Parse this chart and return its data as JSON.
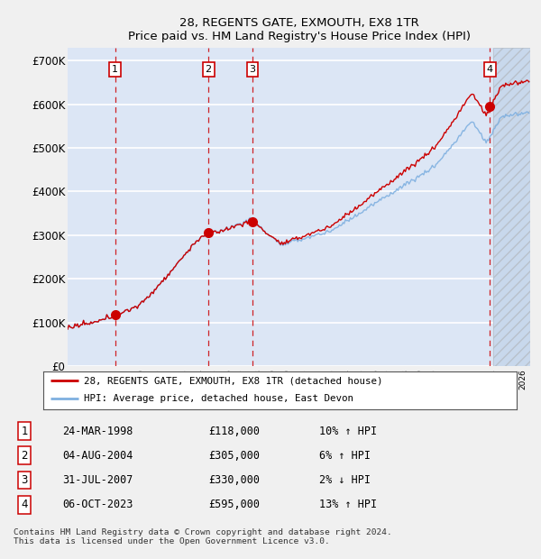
{
  "title": "28, REGENTS GATE, EXMOUTH, EX8 1TR",
  "subtitle": "Price paid vs. HM Land Registry's House Price Index (HPI)",
  "ylim": [
    0,
    730000
  ],
  "yticks": [
    0,
    100000,
    200000,
    300000,
    400000,
    500000,
    600000,
    700000
  ],
  "ytick_labels": [
    "£0",
    "£100K",
    "£200K",
    "£300K",
    "£400K",
    "£500K",
    "£600K",
    "£700K"
  ],
  "background_color": "#dce6f5",
  "grid_color": "#ffffff",
  "sale_year_nums": [
    1998.23,
    2004.59,
    2007.58,
    2023.76
  ],
  "sale_prices": [
    118000,
    305000,
    330000,
    595000
  ],
  "sale_labels": [
    "1",
    "2",
    "3",
    "4"
  ],
  "legend_property": "28, REGENTS GATE, EXMOUTH, EX8 1TR (detached house)",
  "legend_hpi": "HPI: Average price, detached house, East Devon",
  "table_rows": [
    [
      "1",
      "24-MAR-1998",
      "£118,000",
      "10% ↑ HPI"
    ],
    [
      "2",
      "04-AUG-2004",
      "£305,000",
      "6% ↑ HPI"
    ],
    [
      "3",
      "31-JUL-2007",
      "£330,000",
      "2% ↓ HPI"
    ],
    [
      "4",
      "06-OCT-2023",
      "£595,000",
      "13% ↑ HPI"
    ]
  ],
  "footer": "Contains HM Land Registry data © Crown copyright and database right 2024.\nThis data is licensed under the Open Government Licence v3.0.",
  "hpi_line_color": "#7fb0e0",
  "property_line_color": "#cc0000",
  "dashed_line_color": "#cc0000",
  "sale_marker_color": "#cc0000",
  "fig_bg": "#f0f0f0"
}
